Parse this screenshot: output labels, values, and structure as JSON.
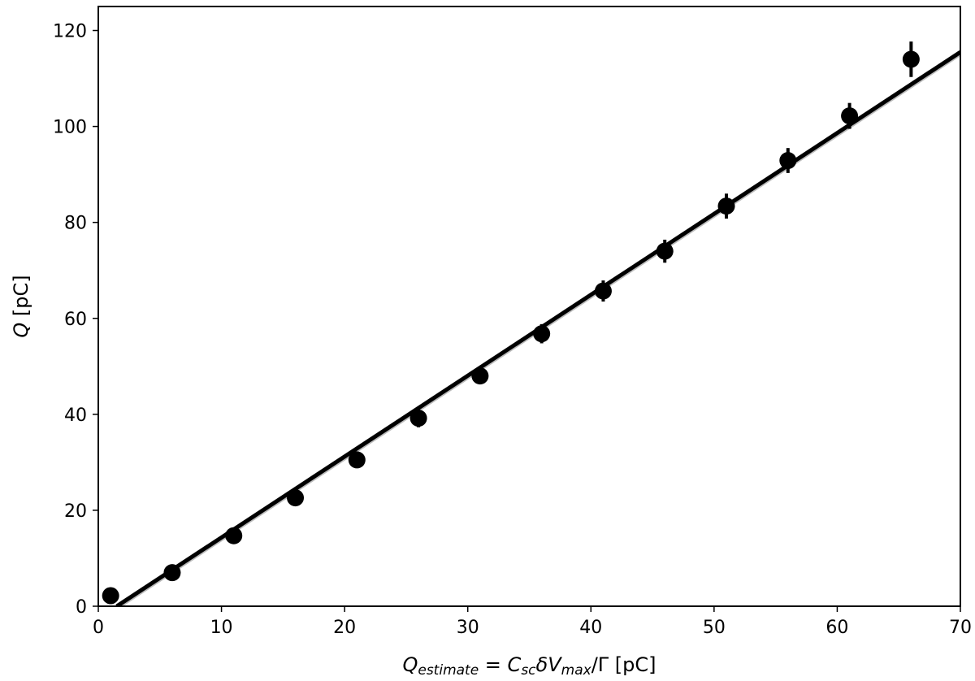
{
  "chart_data": {
    "type": "scatter",
    "title": "",
    "xlabel": {
      "parts": [
        {
          "t": "Q",
          "style": "italic"
        },
        {
          "t": "estimate",
          "style": "italic-sub"
        },
        {
          "t": " = ",
          "style": "normal"
        },
        {
          "t": "C",
          "style": "italic"
        },
        {
          "t": "sc",
          "style": "italic-sub"
        },
        {
          "t": "δ",
          "style": "italic"
        },
        {
          "t": "V",
          "style": "italic"
        },
        {
          "t": "max",
          "style": "italic-sub"
        },
        {
          "t": "/Γ",
          "style": "normal"
        },
        {
          "t": " [pC]",
          "style": "normal"
        }
      ]
    },
    "ylabel": {
      "parts": [
        {
          "t": "Q",
          "style": "italic"
        },
        {
          "t": " [pC]",
          "style": "normal"
        }
      ]
    },
    "xlim": [
      0,
      70
    ],
    "ylim": [
      0,
      125
    ],
    "xticks": [
      0,
      10,
      20,
      30,
      40,
      50,
      60,
      70
    ],
    "yticks": [
      0,
      20,
      40,
      60,
      80,
      100,
      120
    ],
    "grid": false,
    "legend": "none",
    "colors": {
      "points": "#000000",
      "fit": "#000000",
      "band": "#bbbbbb"
    },
    "series": [
      {
        "kind": "points-with-errorbars",
        "x": [
          1,
          6,
          11,
          16,
          21,
          26,
          31,
          36,
          41,
          46,
          51,
          56,
          61,
          66
        ],
        "y": [
          2.2,
          7.0,
          14.7,
          22.6,
          30.5,
          39.2,
          48.0,
          56.8,
          65.7,
          74.0,
          83.4,
          92.9,
          102.2,
          114.0
        ],
        "yerr": [
          0.5,
          0.7,
          0.9,
          1.0,
          1.2,
          1.9,
          1.5,
          2.0,
          2.2,
          2.4,
          2.6,
          2.6,
          2.7,
          3.7
        ]
      },
      {
        "kind": "fit-line",
        "x": [
          1.5,
          70
        ],
        "y": [
          0,
          115.5
        ]
      }
    ]
  }
}
